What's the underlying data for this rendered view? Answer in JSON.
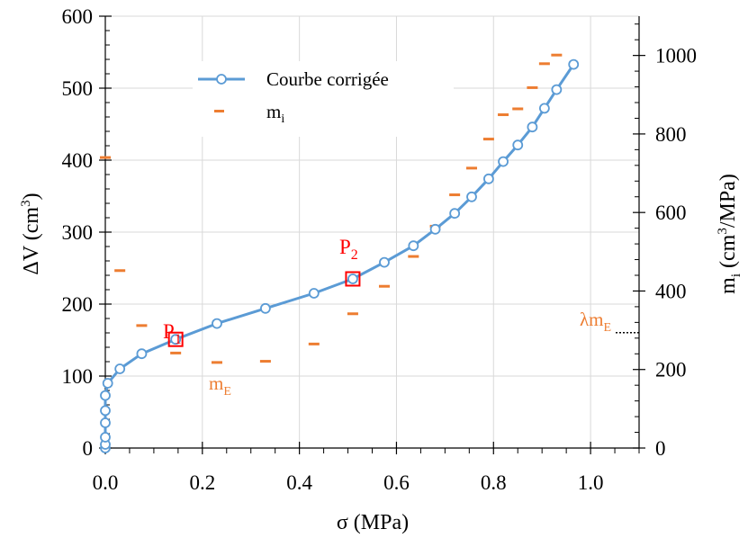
{
  "chart_data": {
    "type": "line",
    "xlabel": "σ (MPa)",
    "ylabel_left": "ΔV (cm",
    "ylabel_left_sup": "3",
    "ylabel_left_end": ")",
    "ylabel_right": "m",
    "ylabel_right_sub": "i",
    "ylabel_right_mid": " (cm",
    "ylabel_right_sup": "3",
    "ylabel_right_end": "/MPa)",
    "xlim": [
      0,
      1.1
    ],
    "ylim_left": [
      0,
      600
    ],
    "ylim_right": [
      0,
      1100
    ],
    "x_ticks": [
      0.0,
      0.2,
      0.4,
      0.6,
      0.8,
      1.0
    ],
    "x_tick_labels": [
      "0.0",
      "0.2",
      "0.4",
      "0.6",
      "0.8",
      "1.0"
    ],
    "y_left_ticks": [
      0,
      100,
      200,
      300,
      400,
      500,
      600
    ],
    "y_left_tick_labels": [
      "0",
      "100",
      "200",
      "300",
      "400",
      "500",
      "600"
    ],
    "y_right_ticks": [
      0,
      200,
      400,
      600,
      800,
      1000
    ],
    "y_right_tick_labels": [
      "0",
      "200",
      "400",
      "600",
      "800",
      "1000"
    ],
    "grid": true,
    "legend_position": "top-center",
    "colors": {
      "curve": "#5b9bd5",
      "mi": "#ed7d31",
      "points": "#ff0000",
      "grid": "#d9d9d9"
    },
    "series": [
      {
        "name": "Courbe corrigée",
        "axis": "left",
        "x": [
          0.0,
          0.0,
          0.0,
          0.0,
          0.0,
          0.0,
          0.005,
          0.03,
          0.075,
          0.145,
          0.23,
          0.33,
          0.43,
          0.51,
          0.575,
          0.635,
          0.68,
          0.72,
          0.755,
          0.79,
          0.82,
          0.85,
          0.88,
          0.905,
          0.93,
          0.965
        ],
        "y": [
          0,
          5,
          15,
          35,
          52,
          73,
          90,
          110,
          131,
          151,
          173,
          194,
          215,
          235,
          258,
          281,
          304,
          326,
          349,
          374,
          398,
          421,
          446,
          472,
          498,
          533
        ]
      },
      {
        "name": "m",
        "name_sub": "i",
        "axis": "right",
        "x": [
          0.0,
          0.03,
          0.075,
          0.145,
          0.23,
          0.33,
          0.43,
          0.51,
          0.575,
          0.635,
          0.68,
          0.72,
          0.755,
          0.79,
          0.82,
          0.85,
          0.88,
          0.905,
          0.93
        ],
        "y": [
          740,
          452,
          312,
          242,
          218,
          221,
          265,
          342,
          412,
          488,
          565,
          645,
          713,
          787,
          849,
          864,
          918,
          979,
          1001
        ]
      }
    ],
    "highlighted_points": [
      {
        "label": "P",
        "sub": "1",
        "x": 0.145,
        "y": 151
      },
      {
        "label": "P",
        "sub": "2",
        "x": 0.51,
        "y": 235
      }
    ],
    "annotations": {
      "mE_main": "m",
      "mE_sub": "E",
      "lambda_main": "λm",
      "lambda_sub": "E",
      "lambda_value": 294
    }
  }
}
